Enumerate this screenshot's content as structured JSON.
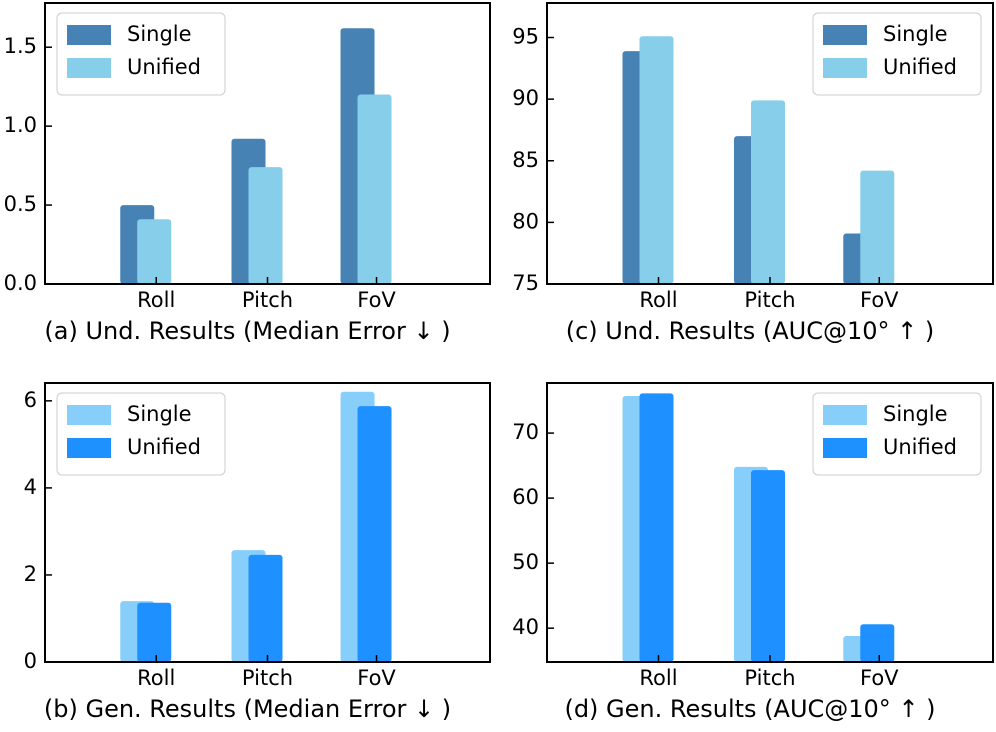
{
  "chart_data": [
    {
      "type": "bar",
      "caption": "(a) Und. Results (Median Error ↓ )",
      "categories": [
        "Roll",
        "Pitch",
        "FoV"
      ],
      "series": [
        {
          "name": "Single",
          "color": "#4682b4",
          "values": [
            0.5,
            0.92,
            1.62
          ]
        },
        {
          "name": "Unified",
          "color": "#87ceeb",
          "values": [
            0.41,
            0.74,
            1.2
          ]
        }
      ],
      "ylim": [
        0,
        1.78
      ],
      "yticks": [
        {
          "value": 0,
          "label": "0.0"
        },
        {
          "value": 0.5,
          "label": "0.5"
        },
        {
          "value": 1,
          "label": "1.0"
        },
        {
          "value": 1.5,
          "label": "1.5"
        }
      ],
      "legend": "upper left"
    },
    {
      "type": "bar",
      "caption": "(b) Gen. Results (Median Error ↓ )",
      "categories": [
        "Roll",
        "Pitch",
        "FoV"
      ],
      "series": [
        {
          "name": "Single",
          "color": "#87cefa",
          "values": [
            1.4,
            2.57,
            6.21
          ]
        },
        {
          "name": "Unified",
          "color": "#1e90ff",
          "values": [
            1.36,
            2.46,
            5.88
          ]
        }
      ],
      "ylim": [
        0,
        6.41
      ],
      "yticks": [
        0,
        2,
        4,
        6
      ],
      "legend": "upper left"
    },
    {
      "type": "bar",
      "caption": "(c) Und. Results (AUC@10° ↑ )",
      "categories": [
        "Roll",
        "Pitch",
        "FoV"
      ],
      "series": [
        {
          "name": "Single",
          "color": "#4682b4",
          "values": [
            93.9,
            87.0,
            79.1
          ]
        },
        {
          "name": "Unified",
          "color": "#87ceeb",
          "values": [
            95.1,
            89.9,
            84.2
          ]
        }
      ],
      "ylim": [
        75,
        97.8
      ],
      "yticks": [
        75,
        80,
        85,
        90,
        95
      ],
      "legend": "upper right"
    },
    {
      "type": "bar",
      "caption": "(d) Gen. Results (AUC@10° ↑ )",
      "categories": [
        "Roll",
        "Pitch",
        "FoV"
      ],
      "series": [
        {
          "name": "Single",
          "color": "#87cefa",
          "values": [
            75.7,
            64.8,
            38.8
          ]
        },
        {
          "name": "Unified",
          "color": "#1e90ff",
          "values": [
            76.1,
            64.3,
            40.6
          ]
        }
      ],
      "ylim": [
        34.8,
        77.7
      ],
      "yticks": [
        40,
        50,
        60,
        70
      ],
      "legend": "upper right"
    }
  ]
}
